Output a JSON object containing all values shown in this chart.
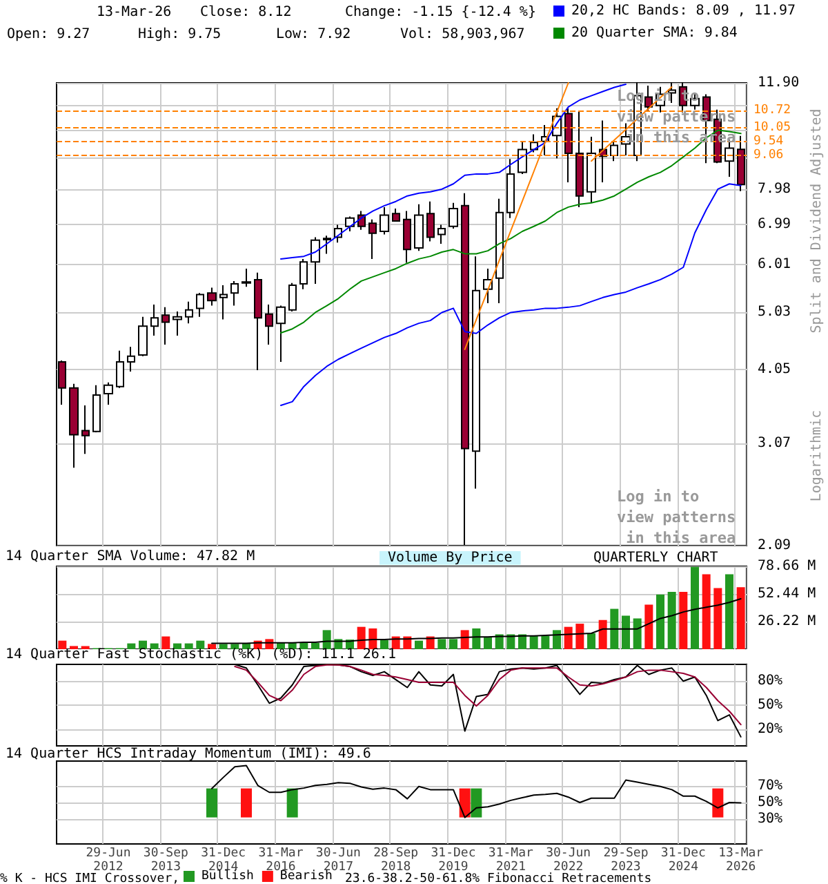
{
  "chart_data": [
    {
      "type": "candlestick",
      "ylabel": "Split and Dividend Adjusted",
      "log": true,
      "grid": true,
      "legend": "top right",
      "tick_labels": "y",
      "annotations": [
        "13-Mar-26",
        "Close: 8.12",
        "Change: -1.15 {-12.4 %}",
        "Open: 9.27",
        "High: 9.75",
        "Low: 7.92",
        "Vol: 58,903,967",
        "Log in to view patterns in this area",
        "Log in to view patterns in this area",
        "Logarithmic"
      ],
      "categories": [
        null,
        null,
        null,
        null,
        null,
        null,
        null,
        null,
        null,
        null,
        null,
        null,
        null,
        null,
        null,
        null,
        null,
        null,
        null,
        null,
        null,
        null,
        null,
        null,
        null,
        null,
        null,
        null,
        null,
        null,
        null,
        null,
        null,
        null,
        null,
        null,
        null,
        null,
        null,
        null,
        null,
        null,
        null,
        null,
        null,
        null,
        null,
        null,
        null,
        null,
        null,
        null,
        null,
        null,
        null,
        null,
        null,
        null,
        null,
        null
      ],
      "ylim": [
        2.09,
        11.9
      ],
      "yticks": [
        2.09,
        3.07,
        4.05,
        5.03,
        6.01,
        6.99,
        7.98,
        {
          "value": 8.96,
          "label": null
        },
        {
          "value": 9.94,
          "label": null
        },
        {
          "value": 10.92,
          "label": null
        },
        {
          "value": 11.9,
          "label": "11.90"
        }
      ],
      "ref_lines": [
        {
          "axis": "y",
          "value": 10.72,
          "label": "10.72",
          "color": "#ff8000",
          "line_style": "dashed"
        },
        {
          "axis": "y",
          "value": 10.05,
          "label": "10.05",
          "color": "#ff8000",
          "line_style": "dashed"
        },
        {
          "axis": "y",
          "value": 9.54,
          "label": "9.54",
          "color": "#ff8000",
          "line_style": "dashed"
        },
        {
          "axis": "y",
          "value": 9.06,
          "label": "9.06",
          "color": "#ff8000",
          "line_style": "dashed"
        }
      ],
      "series": [
        {
          "type": "candlestick",
          "ohlc": [
            [
              4.17,
              4.19,
              3.55,
              3.78
            ],
            [
              3.78,
              3.84,
              2.8,
              3.17
            ],
            [
              3.22,
              3.54,
              2.95,
              3.16
            ],
            [
              3.21,
              3.82,
              3.2,
              3.68
            ],
            [
              3.7,
              3.86,
              3.55,
              3.82
            ],
            [
              3.8,
              4.35,
              3.78,
              4.17
            ],
            [
              4.17,
              4.41,
              4.02,
              4.26
            ],
            [
              4.28,
              4.94,
              4.26,
              4.77
            ],
            [
              4.77,
              5.17,
              4.6,
              4.92
            ],
            [
              4.97,
              5.12,
              4.45,
              4.84
            ],
            [
              4.89,
              5.04,
              4.6,
              4.94
            ],
            [
              4.94,
              5.23,
              4.82,
              5.07
            ],
            [
              5.1,
              5.4,
              4.94,
              5.37
            ],
            [
              5.4,
              5.51,
              5.15,
              5.25
            ],
            [
              5.31,
              5.56,
              4.89,
              5.37
            ],
            [
              5.4,
              5.65,
              5.15,
              5.59
            ],
            [
              5.61,
              5.92,
              5.53,
              5.63
            ],
            [
              5.68,
              5.83,
              4.04,
              4.92
            ],
            [
              4.99,
              5.17,
              4.45,
              4.77
            ],
            [
              4.82,
              5.15,
              4.17,
              5.12
            ],
            [
              5.07,
              5.61,
              5.04,
              5.56
            ],
            [
              5.59,
              6.14,
              5.48,
              6.07
            ],
            [
              6.07,
              6.66,
              5.59,
              6.59
            ],
            [
              6.6,
              6.7,
              6.26,
              6.63
            ],
            [
              6.66,
              6.98,
              6.53,
              6.88
            ],
            [
              6.94,
              7.2,
              6.81,
              7.16
            ],
            [
              7.24,
              7.35,
              6.85,
              6.94
            ],
            [
              7.02,
              7.12,
              6.14,
              6.76
            ],
            [
              6.81,
              7.46,
              6.73,
              7.24
            ],
            [
              7.28,
              7.42,
              7.06,
              7.08
            ],
            [
              7.12,
              7.35,
              6.05,
              6.36
            ],
            [
              6.4,
              7.54,
              6.33,
              7.24
            ],
            [
              7.28,
              7.62,
              6.56,
              6.66
            ],
            [
              6.73,
              6.98,
              6.5,
              6.88
            ],
            [
              6.94,
              7.58,
              6.88,
              7.42
            ],
            [
              7.5,
              7.86,
              2.09,
              3.01
            ],
            [
              2.98,
              6.2,
              2.59,
              5.45
            ],
            [
              5.48,
              5.92,
              5.2,
              5.68
            ],
            [
              5.71,
              7.7,
              5.2,
              7.31
            ],
            [
              7.31,
              8.94,
              7.16,
              8.45
            ],
            [
              8.5,
              9.55,
              8.45,
              9.26
            ],
            [
              9.26,
              9.81,
              9.17,
              9.51
            ],
            [
              9.55,
              10.16,
              9.06,
              9.72
            ],
            [
              9.76,
              10.82,
              8.96,
              10.49
            ],
            [
              10.6,
              10.82,
              8.19,
              9.13
            ],
            [
              9.13,
              10.71,
              7.46,
              7.78
            ],
            [
              7.9,
              9.72,
              7.58,
              9.13
            ],
            [
              9.26,
              10.33,
              8.19,
              9.03
            ],
            [
              9.06,
              9.55,
              8.87,
              9.41
            ],
            [
              9.46,
              10.22,
              9.06,
              9.72
            ],
            [
              9.06,
              11.9,
              8.87,
              11.34
            ],
            [
              11.28,
              11.78,
              10.7,
              10.87
            ],
            [
              10.93,
              11.72,
              10.65,
              11.4
            ],
            [
              11.46,
              11.9,
              11.04,
              11.58
            ],
            [
              11.72,
              11.9,
              10.65,
              10.93
            ],
            [
              10.93,
              11.4,
              10.76,
              11.22
            ],
            [
              11.28,
              11.4,
              8.8,
              10.33
            ],
            [
              10.38,
              10.76,
              8.8,
              8.84
            ],
            [
              8.87,
              9.61,
              8.36,
              9.31
            ],
            [
              9.27,
              9.75,
              7.92,
              8.12
            ]
          ],
          "colors": [
            "#990033",
            "#990033",
            "#990033",
            "#ffffff",
            "#ffffff",
            "#ffffff",
            "#ffffff",
            "#ffffff",
            "#ffffff",
            "#990033",
            "#ffffff",
            "#ffffff",
            "#ffffff",
            "#990033",
            "#ffffff",
            "#ffffff",
            "#ffffff",
            "#990033",
            "#990033",
            "#ffffff",
            "#ffffff",
            "#ffffff",
            "#ffffff",
            "#ffffff",
            "#ffffff",
            "#ffffff",
            "#990033",
            "#990033",
            "#ffffff",
            "#990033",
            "#990033",
            "#ffffff",
            "#990033",
            "#ffffff",
            "#ffffff",
            "#990033",
            "#ffffff",
            "#ffffff",
            "#ffffff",
            "#ffffff",
            "#ffffff",
            "#ffffff",
            "#ffffff",
            "#ffffff",
            "#990033",
            "#990033",
            "#ffffff",
            "#990033",
            "#ffffff",
            "#ffffff",
            "#ffffff",
            "#990033",
            "#ffffff",
            "#ffffff",
            "#990033",
            "#ffffff",
            "#990033",
            "#990033",
            "#ffffff",
            "#990033"
          ]
        },
        {
          "type": "line",
          "name": "20,2 HC Bands: 8.09 , 11.97",
          "color": "#0000ff",
          "values": [
            null,
            null,
            null,
            null,
            null,
            null,
            null,
            null,
            null,
            null,
            null,
            null,
            null,
            null,
            null,
            null,
            null,
            null,
            null,
            6.14,
            6.17,
            6.2,
            6.3,
            6.5,
            6.71,
            6.93,
            7.16,
            7.35,
            7.5,
            7.62,
            7.78,
            7.86,
            7.9,
            7.98,
            8.14,
            8.41,
            8.45,
            8.45,
            8.5,
            8.76,
            9.01,
            9.26,
            9.51,
            10.22,
            10.87,
            11.16,
            11.34,
            11.52,
            11.7,
            11.84,
            null,
            null,
            null,
            null,
            null,
            null,
            null,
            null,
            null,
            null
          ]
        },
        {
          "type": "line",
          "color": "#0000ff",
          "values": [
            null,
            null,
            null,
            null,
            null,
            null,
            null,
            null,
            null,
            null,
            null,
            null,
            null,
            null,
            null,
            null,
            null,
            null,
            null,
            3.54,
            3.59,
            3.8,
            3.96,
            4.1,
            4.21,
            4.3,
            4.39,
            4.48,
            4.57,
            4.64,
            4.74,
            4.82,
            4.87,
            5.02,
            5.1,
            4.67,
            4.64,
            4.79,
            4.92,
            5.02,
            5.05,
            5.07,
            5.1,
            5.1,
            5.12,
            5.15,
            5.23,
            5.31,
            5.37,
            5.42,
            5.51,
            5.59,
            5.68,
            5.8,
            5.95,
            6.77,
            7.39,
            7.98,
            8.14,
            8.09
          ]
        },
        {
          "type": "line",
          "name": "20 Quarter SMA: 9.84",
          "color": "#008800",
          "values": [
            null,
            null,
            null,
            null,
            null,
            null,
            null,
            null,
            null,
            null,
            null,
            null,
            null,
            null,
            null,
            null,
            null,
            null,
            null,
            4.65,
            4.72,
            4.84,
            5.02,
            5.15,
            5.29,
            5.48,
            5.65,
            5.74,
            5.83,
            5.92,
            6.04,
            6.14,
            6.2,
            6.3,
            6.36,
            6.26,
            6.26,
            6.33,
            6.5,
            6.63,
            6.81,
            6.94,
            7.08,
            7.31,
            7.46,
            7.54,
            7.58,
            7.66,
            7.78,
            7.98,
            8.19,
            8.36,
            8.5,
            8.72,
            9.01,
            9.31,
            9.68,
            9.96,
            9.91,
            9.84
          ]
        },
        {
          "type": "line",
          "color": "#ff8000",
          "values": [
            null,
            null,
            null,
            null,
            null,
            null,
            null,
            null,
            null,
            null,
            null,
            null,
            null,
            null,
            null,
            null,
            null,
            null,
            null,
            null,
            null,
            null,
            null,
            null,
            null,
            null,
            null,
            null,
            null,
            null,
            null,
            null,
            null,
            null,
            null,
            4.37,
            4.89,
            5.46,
            6.11,
            6.83,
            7.63,
            8.53,
            9.54,
            10.66,
            11.9,
            null,
            null,
            null,
            null,
            null,
            null,
            null,
            null,
            null,
            null,
            null,
            null,
            null,
            null,
            null
          ]
        },
        {
          "type": "line",
          "color": "#ff8000",
          "values": [
            null,
            null,
            null,
            null,
            null,
            null,
            null,
            null,
            null,
            null,
            null,
            null,
            null,
            null,
            null,
            null,
            null,
            null,
            null,
            null,
            null,
            null,
            null,
            null,
            null,
            null,
            null,
            null,
            null,
            null,
            null,
            null,
            null,
            null,
            null,
            null,
            null,
            null,
            null,
            null,
            null,
            null,
            null,
            null,
            null,
            null,
            8.87,
            9.23,
            9.6,
            9.99,
            10.4,
            10.82,
            11.26,
            11.72,
            null,
            null,
            null,
            null,
            null,
            null
          ]
        }
      ]
    },
    {
      "type": "bar",
      "title": "14 Quarter SMA Volume: 47.82 M",
      "grid": true,
      "tick_labels": "y",
      "annotations": [
        "Volume By Price",
        "QUARTERLY CHART"
      ],
      "categories": [
        null,
        null,
        null,
        null,
        null,
        null,
        null,
        null,
        null,
        null,
        null,
        null,
        null,
        null,
        null,
        null,
        null,
        null,
        null,
        null,
        null,
        null,
        null,
        null,
        null,
        null,
        null,
        null,
        null,
        null,
        null,
        null,
        null,
        null,
        null,
        null,
        null,
        null,
        null,
        null,
        null,
        null,
        null,
        null,
        null,
        null,
        null,
        null,
        null,
        null,
        null,
        null,
        null,
        null,
        null,
        null,
        null,
        null,
        null,
        null
      ],
      "ylim": [
        0,
        78.66
      ],
      "yticks": [
        {
          "value": 26.22,
          "label": "26.22 M"
        },
        {
          "value": 52.44,
          "label": "52.44 M"
        },
        {
          "value": 78.66,
          "label": "78.66 M"
        }
      ],
      "series": [
        {
          "type": "bar",
          "values": [
            8.1,
            3.0,
            3.0,
            1.0,
            1.0,
            1.0,
            5.5,
            8.1,
            5.5,
            12.1,
            5.5,
            5.5,
            8.1,
            5.0,
            5.0,
            5.0,
            5.5,
            8.1,
            9.6,
            6.0,
            6.0,
            6.0,
            6.0,
            18.1,
            9.6,
            9.1,
            21.2,
            19.7,
            8.6,
            12.1,
            12.1,
            8.1,
            12.1,
            9.6,
            9.6,
            18.1,
            19.7,
            11.1,
            14.1,
            14.1,
            14.1,
            12.6,
            12.6,
            18.1,
            21.2,
            24.2,
            15.1,
            27.7,
            38.3,
            31.8,
            29.2,
            42.3,
            51.9,
            54.4,
            54.4,
            78.1,
            71.1,
            58.0,
            71.1,
            58.9
          ],
          "colors": [
            "#ff1111",
            "#ff1111",
            "#ff1111",
            "#229922",
            "#229922",
            "#229922",
            "#229922",
            "#229922",
            "#229922",
            "#ff1111",
            "#229922",
            "#229922",
            "#229922",
            "#ff1111",
            "#229922",
            "#229922",
            "#229922",
            "#ff1111",
            "#ff1111",
            "#229922",
            "#229922",
            "#229922",
            "#229922",
            "#229922",
            "#229922",
            "#229922",
            "#ff1111",
            "#ff1111",
            "#229922",
            "#ff1111",
            "#ff1111",
            "#229922",
            "#ff1111",
            "#229922",
            "#229922",
            "#ff1111",
            "#229922",
            "#229922",
            "#229922",
            "#229922",
            "#229922",
            "#229922",
            "#229922",
            "#229922",
            "#ff1111",
            "#ff1111",
            "#229922",
            "#ff1111",
            "#229922",
            "#229922",
            "#229922",
            "#ff1111",
            "#229922",
            "#229922",
            "#ff1111",
            "#229922",
            "#ff1111",
            "#ff1111",
            "#229922",
            "#ff1111"
          ]
        },
        {
          "type": "line",
          "color": "#000000",
          "values": [
            null,
            null,
            null,
            null,
            null,
            null,
            null,
            null,
            null,
            null,
            null,
            null,
            null,
            5.5,
            5.5,
            5.5,
            5.5,
            6.0,
            6.0,
            6.0,
            6.0,
            6.6,
            6.6,
            7.6,
            7.6,
            7.6,
            8.6,
            9.1,
            9.1,
            9.6,
            9.6,
            10.1,
            10.1,
            10.6,
            10.6,
            11.1,
            11.6,
            11.6,
            12.1,
            12.1,
            12.6,
            12.6,
            13.1,
            13.6,
            14.1,
            14.6,
            15.1,
            19.2,
            19.2,
            19.2,
            19.2,
            24.2,
            29.2,
            31.8,
            35.3,
            37.8,
            39.8,
            41.8,
            44.4,
            47.82
          ]
        }
      ]
    },
    {
      "type": "line",
      "title": "14 Quarter Fast Stochastic (%K) (%D): 11.1 26.1",
      "grid": true,
      "tick_labels": "y",
      "categories": [
        null,
        null,
        null,
        null,
        null,
        null,
        null,
        null,
        null,
        null,
        null,
        null,
        null,
        null,
        null,
        null,
        null,
        null,
        null,
        null,
        null,
        null,
        null,
        null,
        null,
        null,
        null,
        null,
        null,
        null,
        null,
        null,
        null,
        null,
        null,
        null,
        null,
        null,
        null,
        null,
        null,
        null,
        null,
        null,
        null,
        null,
        null,
        null,
        null,
        null,
        null,
        null,
        null,
        null,
        null,
        null,
        null,
        null,
        null,
        null
      ],
      "ylim": [
        0,
        100
      ],
      "yticks": [
        {
          "value": 20,
          "label": "20%"
        },
        {
          "value": 50,
          "label": "50%"
        },
        {
          "value": 80,
          "label": "80%"
        }
      ],
      "series": [
        {
          "color": "#000000",
          "values": [
            null,
            null,
            null,
            null,
            null,
            null,
            null,
            null,
            null,
            null,
            null,
            null,
            null,
            null,
            null,
            100,
            95.5,
            74.8,
            52.3,
            58.7,
            74.8,
            97.4,
            98.7,
            100,
            99.4,
            97.4,
            91,
            86.5,
            91,
            81.3,
            71.6,
            91,
            74.8,
            73.5,
            87.7,
            18.1,
            60.6,
            63.2,
            91,
            94.2,
            95.5,
            94.2,
            95.5,
            98.7,
            81.3,
            63.2,
            78,
            76.8,
            81.3,
            84.5,
            98.7,
            87.7,
            92.9,
            95.5,
            79.4,
            84.5,
            61.9,
            31,
            38.1,
            11.1
          ]
        },
        {
          "color": "#990033",
          "values": [
            null,
            null,
            null,
            null,
            null,
            null,
            null,
            null,
            null,
            null,
            null,
            null,
            null,
            null,
            null,
            97.4,
            92.9,
            78,
            61.9,
            55.5,
            68.4,
            87.7,
            97.4,
            99.4,
            99.4,
            97.4,
            92.9,
            87.7,
            86.5,
            84.5,
            81.3,
            78,
            78,
            78,
            78,
            61.9,
            49,
            61.9,
            81.3,
            92.9,
            95.5,
            95.5,
            95.5,
            95.5,
            84.5,
            74.8,
            73.5,
            76.1,
            80,
            84.5,
            91,
            92.9,
            92.9,
            91,
            89,
            84.5,
            71.6,
            55.5,
            42.6,
            26.1
          ]
        }
      ]
    },
    {
      "type": "line",
      "title": "14 Quarter HCS Intraday Momentum (IMI): 49.6",
      "grid": true,
      "legend": "bottom",
      "annotations": [
        "% K - HCS IMI Crossover,",
        "23.6-38.2-50-61.8% Fibonacci Retracements"
      ],
      "categories": [
        null,
        null,
        null,
        null,
        "29-Jun 2012",
        null,
        null,
        null,
        null,
        "30-Sep 2013",
        null,
        null,
        null,
        null,
        "31-Dec 2014",
        null,
        null,
        null,
        null,
        "31-Mar 2016",
        null,
        null,
        null,
        null,
        "30-Jun 2017",
        null,
        null,
        null,
        null,
        "28-Sep 2018",
        null,
        null,
        null,
        null,
        "31-Dec 2019",
        null,
        null,
        null,
        null,
        "31-Mar 2021",
        null,
        null,
        null,
        null,
        "30-Jun 2022",
        null,
        null,
        null,
        null,
        "29-Sep 2023",
        null,
        null,
        null,
        null,
        "31-Dec 2024",
        null,
        null,
        null,
        null,
        "13-Mar 2026"
      ],
      "ylim": [
        0,
        100
      ],
      "yticks": [
        {
          "value": 30,
          "label": "30%"
        },
        {
          "value": 50,
          "label": "50%"
        },
        {
          "value": 70,
          "label": "70%"
        }
      ],
      "series": [
        {
          "type": "bar",
          "name": "Bullish",
          "color": "#229922",
          "values": [
            null,
            null,
            null,
            null,
            null,
            null,
            null,
            null,
            null,
            null,
            null,
            null,
            null,
            35,
            null,
            null,
            null,
            null,
            null,
            null,
            35,
            null,
            null,
            null,
            null,
            null,
            null,
            null,
            null,
            null,
            null,
            null,
            null,
            null,
            null,
            null,
            35,
            null,
            null,
            null,
            null,
            null,
            null,
            null,
            null,
            null,
            null,
            null,
            null,
            null,
            null,
            null,
            null,
            null,
            null,
            null,
            null,
            null,
            null,
            null
          ],
          "base": [
            null,
            null,
            null,
            null,
            null,
            null,
            null,
            null,
            null,
            null,
            null,
            null,
            null,
            32,
            null,
            null,
            null,
            null,
            null,
            null,
            32,
            null,
            null,
            null,
            null,
            null,
            null,
            null,
            null,
            null,
            null,
            null,
            null,
            null,
            null,
            null,
            32,
            null,
            null,
            null,
            null,
            null,
            null,
            null,
            null,
            null,
            null,
            null,
            null,
            null,
            null,
            null,
            null,
            null,
            null,
            null,
            null,
            null,
            null,
            null
          ]
        },
        {
          "type": "bar",
          "name": "Bearish",
          "color": "#ff1111",
          "values": [
            null,
            null,
            null,
            null,
            null,
            null,
            null,
            null,
            null,
            null,
            null,
            null,
            null,
            null,
            null,
            null,
            35,
            null,
            null,
            null,
            null,
            null,
            null,
            null,
            null,
            null,
            null,
            null,
            null,
            null,
            null,
            null,
            null,
            null,
            null,
            35,
            null,
            null,
            null,
            null,
            null,
            null,
            null,
            null,
            null,
            null,
            null,
            null,
            null,
            null,
            null,
            null,
            null,
            null,
            null,
            null,
            null,
            35,
            null,
            null
          ],
          "base": [
            null,
            null,
            null,
            null,
            null,
            null,
            null,
            null,
            null,
            null,
            null,
            null,
            null,
            null,
            null,
            null,
            32,
            null,
            null,
            null,
            null,
            null,
            null,
            null,
            null,
            null,
            null,
            null,
            null,
            null,
            null,
            null,
            null,
            null,
            null,
            32,
            null,
            null,
            null,
            null,
            null,
            null,
            null,
            null,
            null,
            null,
            null,
            null,
            null,
            null,
            null,
            null,
            null,
            null,
            null,
            null,
            null,
            32,
            null,
            null
          ]
        },
        {
          "type": "line",
          "color": "#000000",
          "values": [
            null,
            null,
            null,
            null,
            null,
            null,
            null,
            null,
            null,
            null,
            null,
            null,
            null,
            66.8,
            80.3,
            93.2,
            94.5,
            70.6,
            62.3,
            62.3,
            65.5,
            67.4,
            70.6,
            71.9,
            73.9,
            73.2,
            68.7,
            66.1,
            67.4,
            65.5,
            54.5,
            69.4,
            65.5,
            65.5,
            65.5,
            31.9,
            43.5,
            44.8,
            48.1,
            52.6,
            55.8,
            59,
            59.7,
            61,
            56.5,
            50,
            55.2,
            55.2,
            55.2,
            77.1,
            74.5,
            71.9,
            69.4,
            65.5,
            57.7,
            57.7,
            51.3,
            43.5,
            50,
            49.6
          ]
        }
      ]
    }
  ]
}
